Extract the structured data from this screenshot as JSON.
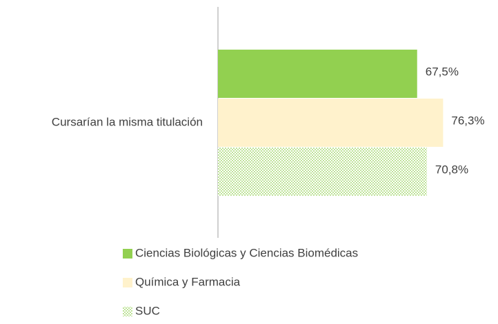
{
  "chart_data": {
    "type": "hbar",
    "categories": [
      "Cursarían la misma titulación"
    ],
    "series": [
      {
        "name": "Ciencias Biológicas y Ciencias Biomédicas",
        "color": "#92d050",
        "values": [
          67.5
        ],
        "value_labels": [
          "67,5%"
        ]
      },
      {
        "name": "Química y Farmacia",
        "color": "#fff2cc",
        "values": [
          76.3
        ],
        "value_labels": [
          "76,3%"
        ]
      },
      {
        "name": "SUC",
        "color": "#92d050",
        "pattern": "dots",
        "values": [
          70.8
        ],
        "value_labels": [
          "70,8%"
        ]
      }
    ],
    "xlim": [
      0,
      90
    ],
    "legend": "bottom"
  }
}
